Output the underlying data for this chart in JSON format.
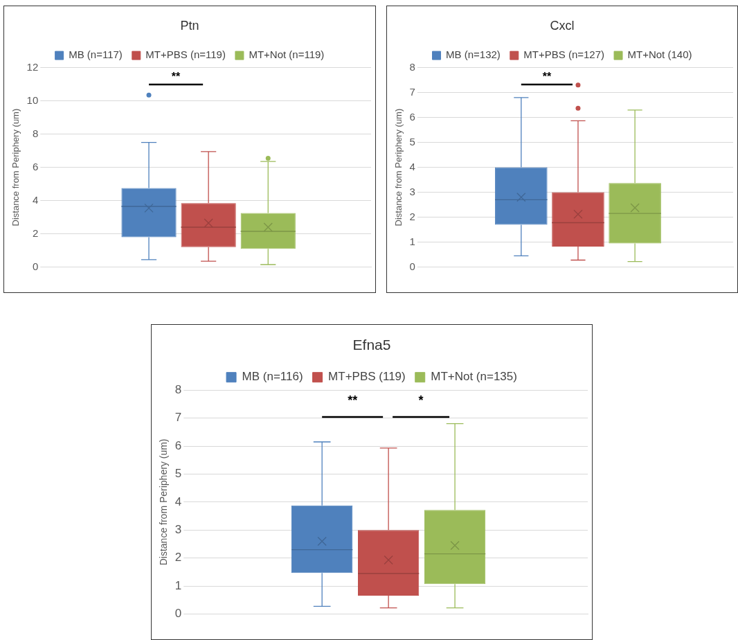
{
  "chart_data": [
    {
      "type": "box",
      "title": "Ptn",
      "ylabel": "Distance from Periphery (um)",
      "categories": [
        null
      ],
      "legend": "top",
      "grid": "y",
      "ylim": [
        0,
        12
      ],
      "yticks": [
        0,
        2,
        4,
        6,
        8,
        10,
        12
      ],
      "annotations": [
        "**"
      ],
      "series": [
        {
          "name": "MB (n=117)",
          "color": "#4f81bd",
          "boxes": [
            {
              "low": 0.45,
              "q1": 1.8,
              "median": 3.65,
              "q3": 4.75,
              "high": 7.5,
              "mean": 3.55,
              "outliers": [
                10.35
              ]
            }
          ]
        },
        {
          "name": "MT+PBS (n=119)",
          "color": "#c0504d",
          "boxes": [
            {
              "low": 0.35,
              "q1": 1.2,
              "median": 2.4,
              "q3": 3.85,
              "high": 6.95,
              "mean": 2.65
            }
          ]
        },
        {
          "name": "MT+Not (n=119)",
          "color": "#9bbb59",
          "boxes": [
            {
              "low": 0.15,
              "q1": 1.1,
              "median": 2.15,
              "q3": 3.25,
              "high": 6.35,
              "mean": 2.4,
              "outliers": [
                6.55
              ]
            }
          ]
        }
      ]
    },
    {
      "type": "box",
      "title": "Cxcl",
      "ylabel": "Distance from Periphery (um)",
      "categories": [
        null
      ],
      "legend": "top",
      "grid": "y",
      "ylim": [
        0,
        8
      ],
      "yticks": [
        0,
        1,
        2,
        3,
        4,
        5,
        6,
        7,
        8
      ],
      "annotations": [
        "**"
      ],
      "series": [
        {
          "name": "MB (n=132)",
          "color": "#4f81bd",
          "boxes": [
            {
              "low": 0.45,
              "q1": 1.7,
              "median": 2.7,
              "q3": 4.0,
              "high": 6.8,
              "mean": 2.8
            }
          ]
        },
        {
          "name": "MT+PBS (n=127)",
          "color": "#c0504d",
          "boxes": [
            {
              "low": 0.28,
              "q1": 0.82,
              "median": 1.78,
              "q3": 3.0,
              "high": 5.87,
              "mean": 2.12,
              "outliers": [
                6.37,
                7.3
              ]
            }
          ]
        },
        {
          "name": "MT+Not (140)",
          "color": "#9bbb59",
          "boxes": [
            {
              "low": 0.22,
              "q1": 0.95,
              "median": 2.15,
              "q3": 3.37,
              "high": 6.3,
              "mean": 2.38
            }
          ]
        }
      ]
    },
    {
      "type": "box",
      "title": "Efna5",
      "ylabel": "Distance from Periphery (um)",
      "categories": [
        null
      ],
      "legend": "top",
      "grid": "y",
      "ylim": [
        0,
        8
      ],
      "yticks": [
        0,
        1,
        2,
        3,
        4,
        5,
        6,
        7,
        8
      ],
      "annotations": [
        "**",
        "*"
      ],
      "series": [
        {
          "name": "MB (n=116)",
          "color": "#4f81bd",
          "boxes": [
            {
              "low": 0.28,
              "q1": 1.47,
              "median": 2.3,
              "q3": 3.88,
              "high": 6.15,
              "mean": 2.6
            }
          ]
        },
        {
          "name": "MT+PBS (119)",
          "color": "#c0504d",
          "boxes": [
            {
              "low": 0.22,
              "q1": 0.66,
              "median": 1.45,
              "q3": 3.0,
              "high": 5.93,
              "mean": 1.93
            }
          ]
        },
        {
          "name": "MT+Not (n=135)",
          "color": "#9bbb59",
          "boxes": [
            {
              "low": 0.22,
              "q1": 1.07,
              "median": 2.15,
              "q3": 3.72,
              "high": 6.8,
              "mean": 2.45
            }
          ]
        }
      ]
    }
  ]
}
